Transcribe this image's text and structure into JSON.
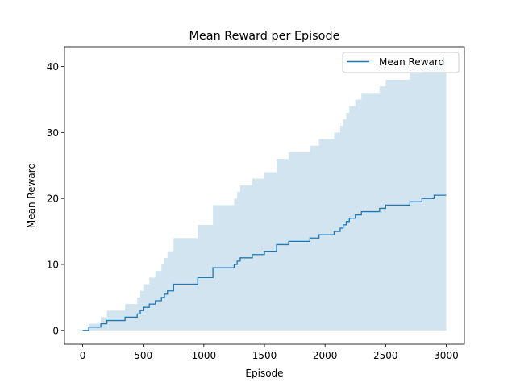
{
  "chart_data": {
    "type": "line",
    "title": "Mean Reward per Episode",
    "xlabel": "Episode",
    "ylabel": "Mean Reward",
    "xlim": [
      -150,
      3150
    ],
    "ylim": [
      -2.1,
      43
    ],
    "xticks": [
      0,
      500,
      1000,
      1500,
      2000,
      2500,
      3000
    ],
    "yticks": [
      0,
      10,
      20,
      30,
      40
    ],
    "grid": false,
    "legend_placement": "top-right",
    "colors": {
      "line": "#1f77b4",
      "band": "#1f77b4"
    },
    "series": [
      {
        "name": "Mean Reward",
        "x": [
          0,
          50,
          150,
          200,
          350,
          450,
          475,
          500,
          550,
          600,
          650,
          675,
          700,
          750,
          950,
          1075,
          1250,
          1275,
          1300,
          1350,
          1400,
          1450,
          1500,
          1575,
          1600,
          1700,
          1800,
          1875,
          1950,
          2000,
          2050,
          2075,
          2125,
          2150,
          2175,
          2200,
          2250,
          2300,
          2400,
          2450,
          2500,
          2550,
          2700,
          2800,
          2900,
          3000
        ],
        "y": [
          0,
          0.5,
          1,
          1.5,
          2,
          2.5,
          3,
          3.5,
          4,
          4.5,
          5,
          5.5,
          6,
          7,
          8,
          9.5,
          10,
          10.5,
          11,
          11,
          11.5,
          11.5,
          12,
          12,
          13,
          13.5,
          13.5,
          14,
          14.5,
          14.5,
          14.5,
          15,
          15.5,
          16,
          16.5,
          17,
          17.5,
          18,
          18,
          18.5,
          19,
          19,
          19.5,
          20,
          20.5,
          20.5
        ]
      }
    ],
    "band": {
      "x": [
        0,
        50,
        150,
        200,
        350,
        450,
        475,
        500,
        550,
        600,
        650,
        675,
        700,
        750,
        950,
        1075,
        1250,
        1275,
        1300,
        1350,
        1400,
        1450,
        1500,
        1575,
        1600,
        1700,
        1800,
        1875,
        1950,
        2000,
        2050,
        2075,
        2125,
        2150,
        2175,
        2200,
        2250,
        2300,
        2400,
        2450,
        2500,
        2550,
        2700,
        2800,
        2900,
        3000
      ],
      "lower": [
        0,
        0,
        0,
        0,
        0,
        0,
        0,
        0,
        0,
        0,
        0,
        0,
        0,
        0,
        0,
        0,
        0,
        0,
        0,
        0,
        0,
        0,
        0,
        0,
        0,
        0,
        0,
        0,
        0,
        0,
        0,
        0,
        0,
        0,
        0,
        0,
        0,
        0,
        0,
        0,
        0,
        0,
        0,
        0,
        0,
        0
      ],
      "upper": [
        0,
        1,
        2,
        3,
        4,
        5,
        6,
        7,
        8,
        9,
        10,
        11,
        12,
        14,
        16,
        19,
        20,
        21,
        22,
        22,
        23,
        23,
        24,
        24,
        26,
        27,
        27,
        28,
        29,
        29,
        29,
        30,
        31,
        32,
        33,
        34,
        35,
        36,
        36,
        37,
        38,
        38,
        39,
        40,
        41,
        41
      ]
    }
  }
}
